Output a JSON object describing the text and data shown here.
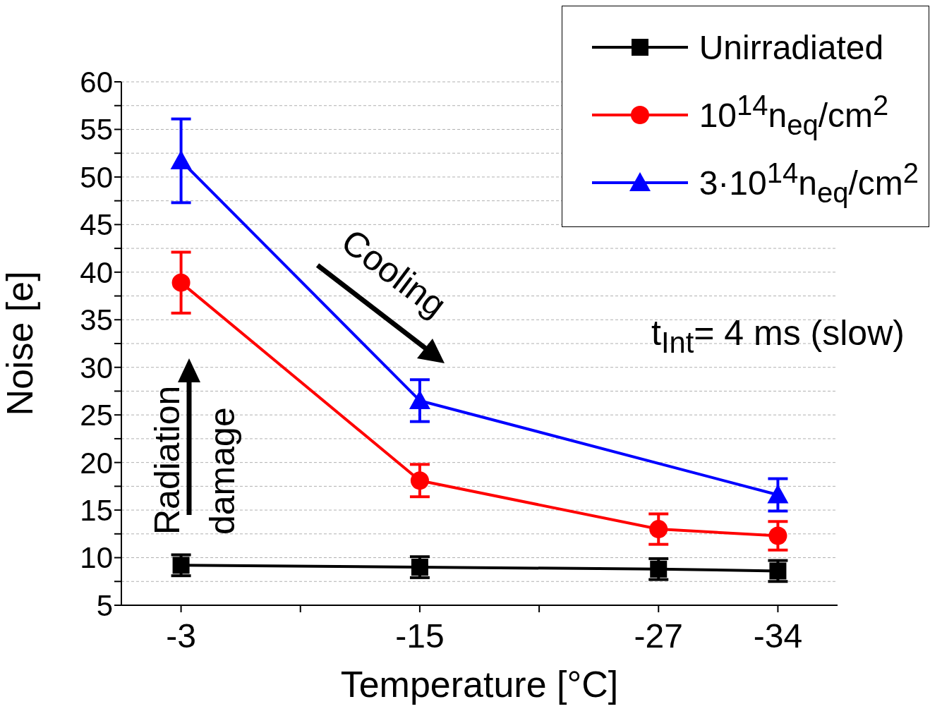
{
  "chart_data": {
    "type": "line",
    "xlabel": "Temperature [°C]",
    "ylabel": "Noise [e]",
    "categories": [
      "-3",
      null,
      "-15",
      null,
      "-27",
      "-34"
    ],
    "ylim": [
      5,
      60
    ],
    "yticks": [
      5,
      {
        "value": 7.5,
        "label": null
      },
      10,
      {
        "value": 12.5,
        "label": null
      },
      15,
      {
        "value": 17.5,
        "label": null
      },
      20,
      {
        "value": 22.5,
        "label": null
      },
      25,
      {
        "value": 27.5,
        "label": null
      },
      30,
      {
        "value": 32.5,
        "label": null
      },
      35,
      {
        "value": 37.5,
        "label": null
      },
      40,
      {
        "value": 42.5,
        "label": null
      },
      45,
      {
        "value": 47.5,
        "label": null
      },
      50,
      {
        "value": 52.5,
        "label": null
      },
      55,
      {
        "value": 57.5,
        "label": null
      },
      60
    ],
    "grid": "y",
    "legend": "top right",
    "line_style": "solid",
    "series": [
      {
        "name": "Unirradiated",
        "color": "#000000",
        "marker": "square",
        "values": [
          9.2,
          null,
          9.0,
          null,
          8.8,
          8.6
        ],
        "errors": [
          1.1,
          null,
          1.1,
          null,
          1.1,
          1.1
        ]
      },
      {
        "name": "10$^{14}$n$_{eq}$/cm$^{2}$",
        "color": "#ff0000",
        "marker": "circle",
        "values": [
          38.9,
          null,
          18.1,
          null,
          13.0,
          12.3
        ],
        "errors": [
          3.2,
          null,
          1.7,
          null,
          1.6,
          1.5
        ]
      },
      {
        "name": "3·10$^{14}$n$_{eq}$/cm$^{2}$",
        "color": "#0000ff",
        "marker": "triangle",
        "values": [
          51.7,
          null,
          26.5,
          null,
          null,
          16.6
        ],
        "errors": [
          4.4,
          null,
          2.2,
          null,
          null,
          1.7
        ]
      }
    ],
    "annotations": [
      "Cooling",
      "Radiation damage",
      "t$_{Int}$= 4 ms (slow)"
    ]
  }
}
